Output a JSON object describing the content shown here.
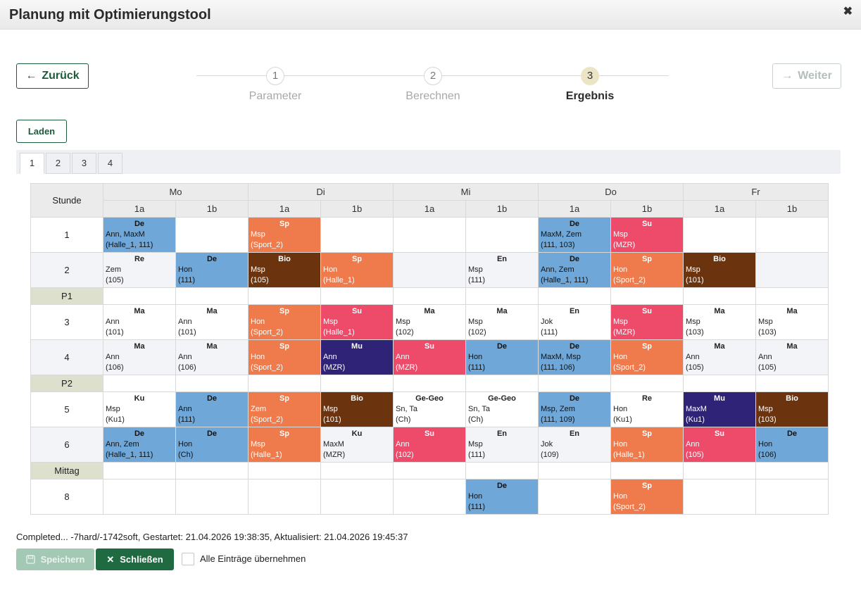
{
  "window": {
    "title": "Planung mit Optimierungstool",
    "close_glyph": "✖"
  },
  "nav": {
    "back_label": "Zurück",
    "back_icon": "←",
    "next_label": "Weiter",
    "next_icon": "→"
  },
  "steps": [
    {
      "num": "1",
      "label": "Parameter",
      "active": false
    },
    {
      "num": "2",
      "label": "Berechnen",
      "active": false
    },
    {
      "num": "3",
      "label": "Ergebnis",
      "active": true
    }
  ],
  "load_label": "Laden",
  "tabs": [
    "1",
    "2",
    "3",
    "4"
  ],
  "timetable": {
    "stunde_label": "Stunde",
    "days": [
      "Mo",
      "Di",
      "Mi",
      "Do",
      "Fr"
    ],
    "classes": [
      "1a",
      "1b"
    ],
    "colors": {
      "blue": "#6fa8d8",
      "orange": "#ef7b4c",
      "red": "#ee4a6a",
      "brown": "#6b340f",
      "navy": "#2f2378"
    },
    "rows": [
      {
        "label": "1",
        "cells": [
          {
            "s": "De",
            "t": "Ann, MaxM",
            "r": "(Halle_1, 111)",
            "c": "blue"
          },
          null,
          {
            "s": "Sp",
            "t": "Msp",
            "r": "(Sport_2)",
            "c": "orange"
          },
          null,
          null,
          null,
          {
            "s": "De",
            "t": "MaxM, Zem",
            "r": "(111, 103)",
            "c": "blue"
          },
          {
            "s": "Su",
            "t": "Msp",
            "r": "(MZR)",
            "c": "red"
          },
          null,
          null
        ]
      },
      {
        "label": "2",
        "cells": [
          {
            "s": "Re",
            "t": "Zem",
            "r": "(105)",
            "c": ""
          },
          {
            "s": "De",
            "t": "Hon",
            "r": "(111)",
            "c": "blue"
          },
          {
            "s": "Bio",
            "t": "Msp",
            "r": "(105)",
            "c": "brown"
          },
          {
            "s": "Sp",
            "t": "Hon",
            "r": "(Halle_1)",
            "c": "orange"
          },
          null,
          {
            "s": "En",
            "t": "Msp",
            "r": "(111)",
            "c": ""
          },
          {
            "s": "De",
            "t": "Ann, Zem",
            "r": "(Halle_1, 111)",
            "c": "blue"
          },
          {
            "s": "Sp",
            "t": "Hon",
            "r": "(Sport_2)",
            "c": "orange"
          },
          {
            "s": "Bio",
            "t": "Msp",
            "r": "(101)",
            "c": "brown"
          },
          null
        ]
      },
      {
        "label": "P1",
        "pause": true
      },
      {
        "label": "3",
        "cells": [
          {
            "s": "Ma",
            "t": "Ann",
            "r": "(101)",
            "c": ""
          },
          {
            "s": "Ma",
            "t": "Ann",
            "r": "(101)",
            "c": ""
          },
          {
            "s": "Sp",
            "t": "Hon",
            "r": "(Sport_2)",
            "c": "orange"
          },
          {
            "s": "Su",
            "t": "Msp",
            "r": "(Halle_1)",
            "c": "red"
          },
          {
            "s": "Ma",
            "t": "Msp",
            "r": "(102)",
            "c": ""
          },
          {
            "s": "Ma",
            "t": "Msp",
            "r": "(102)",
            "c": ""
          },
          {
            "s": "En",
            "t": "Jok",
            "r": "(111)",
            "c": ""
          },
          {
            "s": "Su",
            "t": "Msp",
            "r": "(MZR)",
            "c": "red"
          },
          {
            "s": "Ma",
            "t": "Msp",
            "r": "(103)",
            "c": ""
          },
          {
            "s": "Ma",
            "t": "Msp",
            "r": "(103)",
            "c": ""
          }
        ]
      },
      {
        "label": "4",
        "cells": [
          {
            "s": "Ma",
            "t": "Ann",
            "r": "(106)",
            "c": ""
          },
          {
            "s": "Ma",
            "t": "Ann",
            "r": "(106)",
            "c": ""
          },
          {
            "s": "Sp",
            "t": "Hon",
            "r": "(Sport_2)",
            "c": "orange"
          },
          {
            "s": "Mu",
            "t": "Ann",
            "r": "(MZR)",
            "c": "navy"
          },
          {
            "s": "Su",
            "t": "Ann",
            "r": "(MZR)",
            "c": "red"
          },
          {
            "s": "De",
            "t": "Hon",
            "r": "(111)",
            "c": "blue"
          },
          {
            "s": "De",
            "t": "MaxM, Msp",
            "r": "(111, 106)",
            "c": "blue"
          },
          {
            "s": "Sp",
            "t": "Hon",
            "r": "(Sport_2)",
            "c": "orange"
          },
          {
            "s": "Ma",
            "t": "Ann",
            "r": "(105)",
            "c": ""
          },
          {
            "s": "Ma",
            "t": "Ann",
            "r": "(105)",
            "c": ""
          }
        ]
      },
      {
        "label": "P2",
        "pause": true
      },
      {
        "label": "5",
        "cells": [
          {
            "s": "Ku",
            "t": "Msp",
            "r": "(Ku1)",
            "c": ""
          },
          {
            "s": "De",
            "t": "Ann",
            "r": "(111)",
            "c": "blue"
          },
          {
            "s": "Sp",
            "t": "Zem",
            "r": "(Sport_2)",
            "c": "orange"
          },
          {
            "s": "Bio",
            "t": "Msp",
            "r": "(101)",
            "c": "brown"
          },
          {
            "s": "Ge-Geo",
            "t": "Sn, Ta",
            "r": "(Ch)",
            "c": ""
          },
          {
            "s": "Ge-Geo",
            "t": "Sn, Ta",
            "r": "(Ch)",
            "c": ""
          },
          {
            "s": "De",
            "t": "Msp, Zem",
            "r": "(111, 109)",
            "c": "blue"
          },
          {
            "s": "Re",
            "t": "Hon",
            "r": "(Ku1)",
            "c": ""
          },
          {
            "s": "Mu",
            "t": "MaxM",
            "r": "(Ku1)",
            "c": "navy"
          },
          {
            "s": "Bio",
            "t": "Msp",
            "r": "(103)",
            "c": "brown"
          }
        ]
      },
      {
        "label": "6",
        "cells": [
          {
            "s": "De",
            "t": "Ann, Zem",
            "r": "(Halle_1, 111)",
            "c": "blue"
          },
          {
            "s": "De",
            "t": "Hon",
            "r": "(Ch)",
            "c": "blue"
          },
          {
            "s": "Sp",
            "t": "Msp",
            "r": "(Halle_1)",
            "c": "orange"
          },
          {
            "s": "Ku",
            "t": "MaxM",
            "r": "(MZR)",
            "c": ""
          },
          {
            "s": "Su",
            "t": "Ann",
            "r": "(102)",
            "c": "red"
          },
          {
            "s": "En",
            "t": "Msp",
            "r": "(111)",
            "c": ""
          },
          {
            "s": "En",
            "t": "Jok",
            "r": "(109)",
            "c": ""
          },
          {
            "s": "Sp",
            "t": "Hon",
            "r": "(Halle_1)",
            "c": "orange"
          },
          {
            "s": "Su",
            "t": "Ann",
            "r": "(105)",
            "c": "red"
          },
          {
            "s": "De",
            "t": "Hon",
            "r": "(106)",
            "c": "blue"
          }
        ]
      },
      {
        "label": "Mittag",
        "pause": true
      },
      {
        "label": "8",
        "cells": [
          null,
          null,
          null,
          null,
          null,
          {
            "s": "De",
            "t": "Hon",
            "r": "(111)",
            "c": "blue"
          },
          null,
          {
            "s": "Sp",
            "t": "Hon",
            "r": "(Sport_2)",
            "c": "orange"
          },
          null,
          null
        ]
      }
    ]
  },
  "status_text": "Completed... -7hard/-1742soft, Gestartet: 21.04.2026 19:38:35, Aktualisiert: 21.04.2026 19:45:37",
  "footer": {
    "save_label": "Speichern",
    "close_label": "Schließen",
    "close_icon": "✕",
    "apply_all_label": "Alle Einträge übernehmen"
  }
}
